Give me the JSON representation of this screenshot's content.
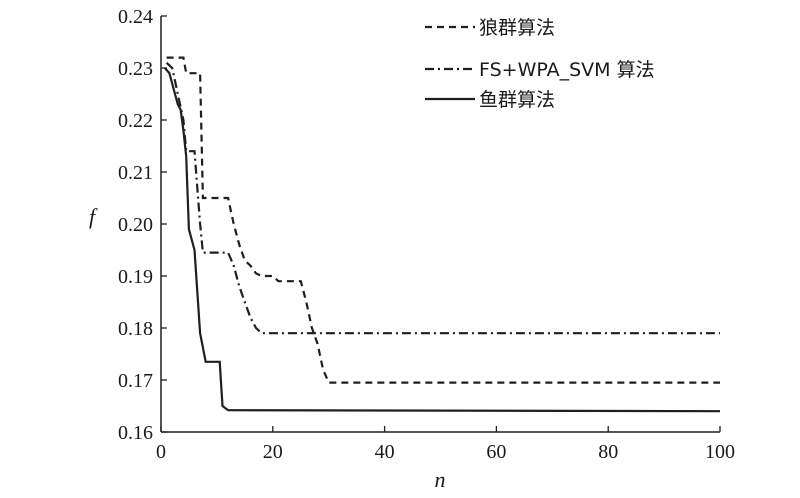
{
  "chart_data": {
    "type": "line",
    "xlabel": "n",
    "ylabel": "f",
    "xlim": [
      0,
      100
    ],
    "ylim": [
      0.16,
      0.24
    ],
    "xticks": [
      "0",
      "20",
      "40",
      "60",
      "80",
      "100"
    ],
    "yticks": [
      "0.16",
      "0.17",
      "0.18",
      "0.19",
      "0.20",
      "0.21",
      "0.22",
      "0.23",
      "0.24"
    ],
    "grid": false,
    "legend_position": "top-right",
    "series": [
      {
        "name": "狼群算法",
        "style": "dashed",
        "points": [
          [
            1,
            0.232
          ],
          [
            4,
            0.232
          ],
          [
            4.5,
            0.229
          ],
          [
            7,
            0.229
          ],
          [
            7.5,
            0.205
          ],
          [
            12,
            0.205
          ],
          [
            13,
            0.2
          ],
          [
            14,
            0.196
          ],
          [
            15,
            0.193
          ],
          [
            16,
            0.192
          ],
          [
            17,
            0.1905
          ],
          [
            18,
            0.19
          ],
          [
            20,
            0.19
          ],
          [
            21,
            0.189
          ],
          [
            25,
            0.189
          ],
          [
            26,
            0.185
          ],
          [
            27,
            0.18
          ],
          [
            28,
            0.177
          ],
          [
            29,
            0.172
          ],
          [
            30,
            0.1695
          ],
          [
            100,
            0.1695
          ]
        ]
      },
      {
        "name": "FS+WPA_SVM 算法",
        "style": "dashdot",
        "points": [
          [
            1,
            0.231
          ],
          [
            2,
            0.23
          ],
          [
            3,
            0.225
          ],
          [
            4,
            0.22
          ],
          [
            4.5,
            0.214
          ],
          [
            6,
            0.214
          ],
          [
            7,
            0.2
          ],
          [
            7.5,
            0.1945
          ],
          [
            12,
            0.1945
          ],
          [
            13,
            0.192
          ],
          [
            14,
            0.188
          ],
          [
            15,
            0.185
          ],
          [
            16,
            0.182
          ],
          [
            17,
            0.18
          ],
          [
            18,
            0.179
          ],
          [
            100,
            0.179
          ]
        ]
      },
      {
        "name": "鱼群算法",
        "style": "solid",
        "points": [
          [
            0.7,
            0.23
          ],
          [
            1.5,
            0.229
          ],
          [
            2,
            0.227
          ],
          [
            3,
            0.223
          ],
          [
            3.5,
            0.222
          ],
          [
            4,
            0.218
          ],
          [
            4.5,
            0.213
          ],
          [
            5,
            0.199
          ],
          [
            6,
            0.195
          ],
          [
            7,
            0.179
          ],
          [
            8,
            0.1735
          ],
          [
            10,
            0.1735
          ],
          [
            10.5,
            0.1735
          ],
          [
            11,
            0.165
          ],
          [
            12,
            0.1642
          ],
          [
            100,
            0.164
          ]
        ]
      }
    ]
  }
}
